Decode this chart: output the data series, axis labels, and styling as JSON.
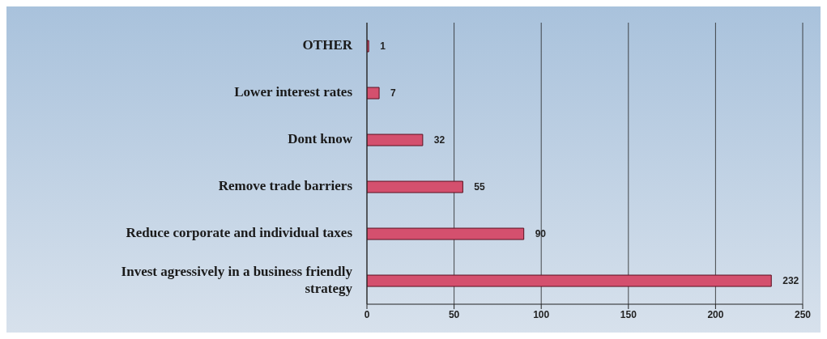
{
  "chart_data": {
    "type": "bar",
    "orientation": "horizontal",
    "categories": [
      "OTHER",
      "Lower interest rates",
      "Dont know",
      "Remove trade barriers",
      "Reduce corporate and individual taxes",
      "Invest agressively in a business friendly strategy"
    ],
    "values": [
      1,
      7,
      32,
      55,
      90,
      232
    ],
    "color": "#d4506e",
    "xlim": [
      0,
      250
    ],
    "xticks": [
      0,
      50,
      100,
      150,
      200,
      250
    ],
    "grid": "x",
    "data_labels": true
  }
}
